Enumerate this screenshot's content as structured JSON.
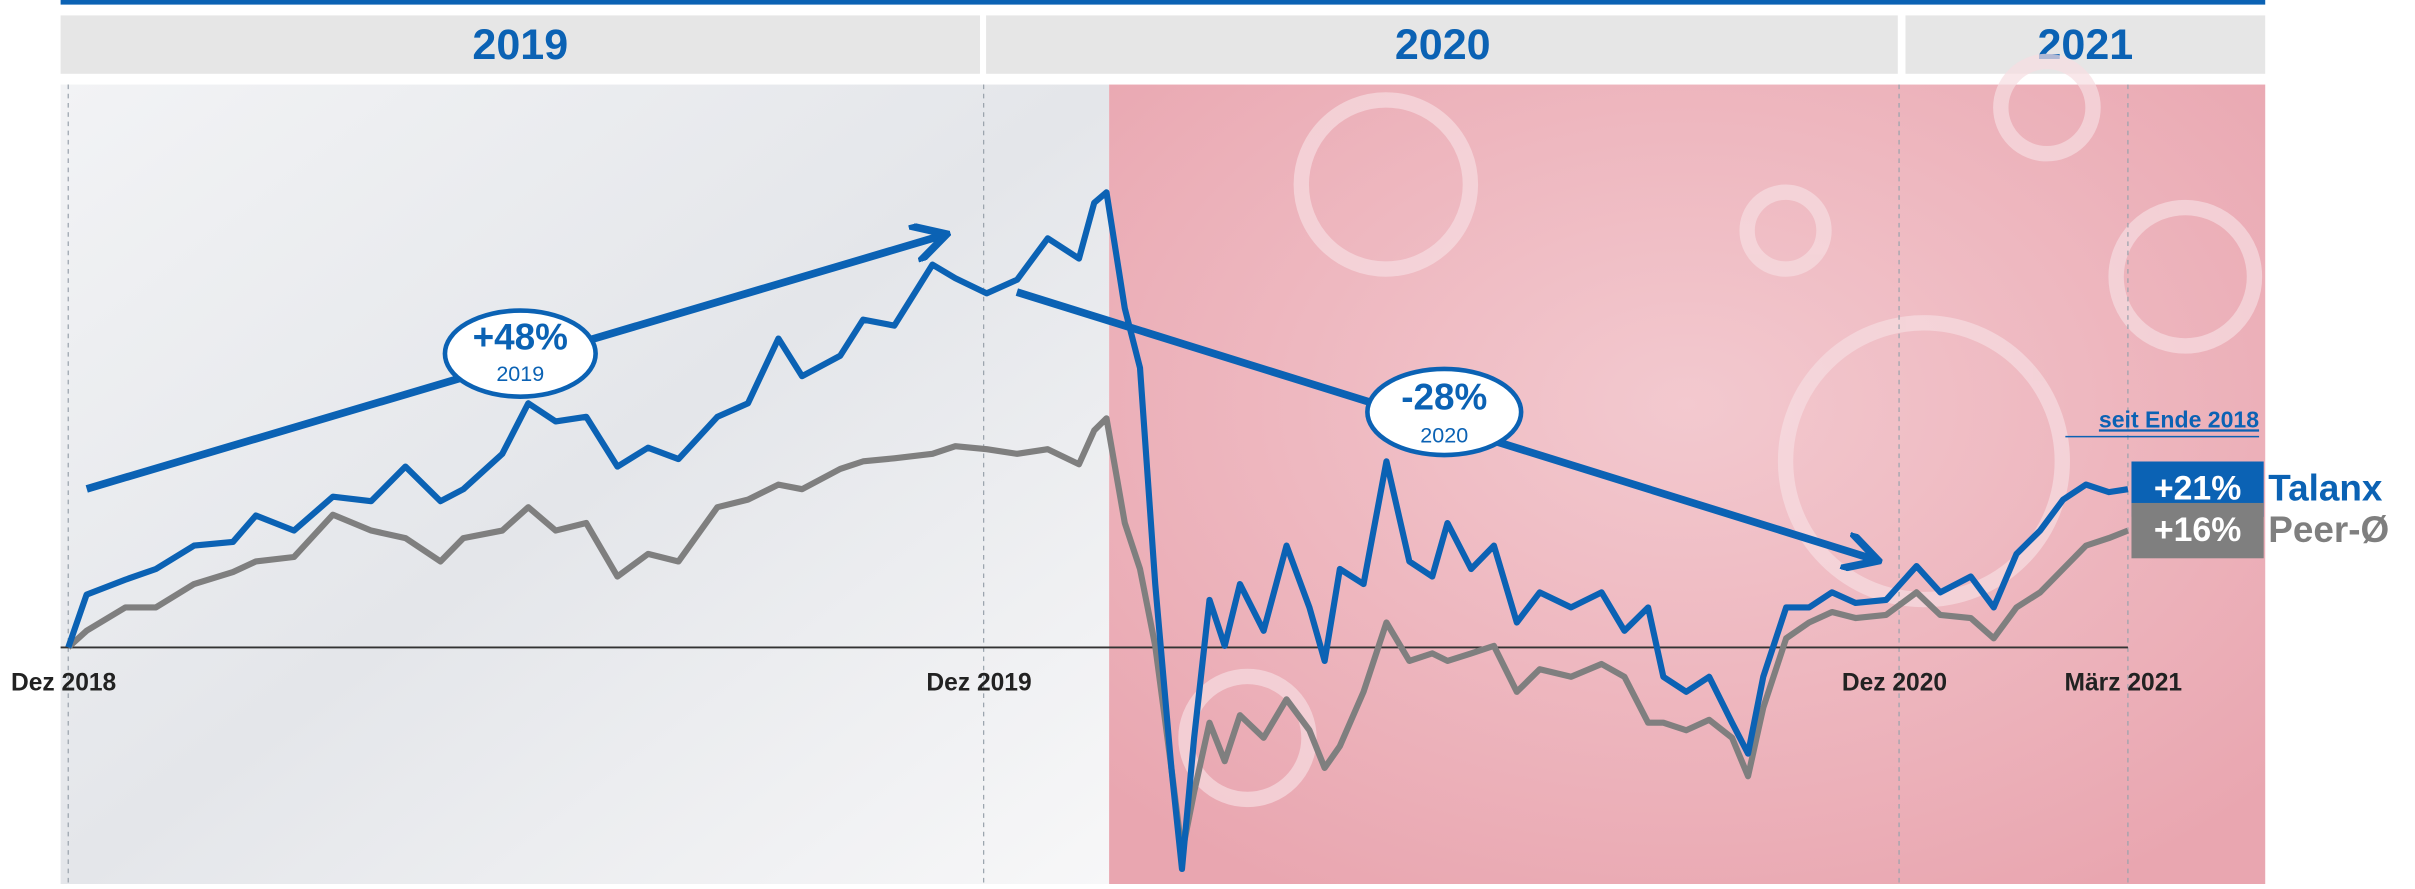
{
  "chart_data": {
    "type": "line",
    "header_years": [
      "2019",
      "2020",
      "2021"
    ],
    "x": [
      0,
      0.24,
      0.75,
      1.15,
      1.65,
      2.16,
      2.46,
      2.96,
      3.47,
      3.97,
      4.42,
      4.88,
      5.18,
      5.69,
      6.03,
      6.39,
      6.79,
      7.2,
      7.6,
      8.0,
      8.51,
      8.91,
      9.31,
      9.62,
      10.12,
      10.42,
      10.83,
      11.33,
      11.63,
      12.04,
      12.44,
      12.84,
      13.25,
      13.45,
      13.61,
      13.85,
      14.05,
      14.25,
      14.46,
      14.6,
      14.76,
      14.96,
      15.16,
      15.36,
      15.67,
      15.97,
      16.27,
      16.47,
      16.67,
      16.98,
      17.28,
      17.58,
      17.88,
      18.08,
      18.39,
      18.69,
      18.99,
      19.29,
      19.7,
      20.1,
      20.4,
      20.71,
      20.91,
      21.21,
      21.51,
      21.81,
      22.02,
      22.22,
      22.52,
      22.82,
      23.12,
      23.43,
      23.83,
      24.23,
      24.54,
      24.94,
      25.24,
      25.54,
      25.85,
      26.15,
      26.45,
      26.75,
      27
    ],
    "series": [
      {
        "name": "Talanx",
        "color": "#0b62b4",
        "end_label": "+21%",
        "values": [
          0,
          7,
          9,
          10.4,
          13.5,
          14,
          17.5,
          15.5,
          20,
          19.4,
          24,
          19.4,
          21,
          25.7,
          32.4,
          30,
          30.6,
          24,
          26.5,
          25,
          30.6,
          32.4,
          41,
          36,
          38.7,
          43.5,
          42.7,
          50.8,
          49,
          47,
          48.8,
          54.3,
          51.6,
          59,
          60.4,
          45,
          37.1,
          8.4,
          -16,
          -29.4,
          -12,
          6.3,
          0.2,
          8.4,
          2.2,
          13.5,
          5.3,
          -1.8,
          10.4,
          8.4,
          24.7,
          11.4,
          9.4,
          16.5,
          10.4,
          13.5,
          3.3,
          7.3,
          5.3,
          7.3,
          2.2,
          5.3,
          -3.9,
          -5.9,
          -3.9,
          -10,
          -14.1,
          -3.9,
          5.3,
          5.3,
          7.3,
          5.9,
          6.3,
          10.8,
          7.3,
          9.4,
          5.3,
          12.4,
          15.5,
          19.6,
          21.6,
          20.6,
          21
        ]
      },
      {
        "name": "Peer-Ø",
        "color": "#7f7f7f",
        "end_label": "+16%",
        "values": [
          0,
          2.2,
          5.3,
          5.3,
          8.4,
          10,
          11.4,
          12,
          17.6,
          15.5,
          14.5,
          11.4,
          14.5,
          15.5,
          18.6,
          15.5,
          16.5,
          9.4,
          12.4,
          11.4,
          18.6,
          19.6,
          21.6,
          21,
          23.7,
          24.7,
          25.1,
          25.7,
          26.7,
          26.3,
          25.7,
          26.3,
          24.3,
          28.8,
          30.4,
          16.5,
          10.4,
          0.2,
          -16,
          -27.3,
          -19.2,
          -10,
          -15.1,
          -9,
          -12,
          -6.9,
          -11,
          -16,
          -13.1,
          -5.9,
          3.3,
          -1.8,
          -0.8,
          -1.8,
          -0.8,
          0.2,
          -5.9,
          -2.9,
          -3.9,
          -2.2,
          -3.9,
          -10,
          -10,
          -11,
          -9.6,
          -12,
          -17.1,
          -8,
          1.2,
          3.3,
          4.7,
          3.9,
          4.3,
          7.3,
          4.3,
          3.9,
          1.2,
          5.3,
          7.3,
          10.4,
          13.5,
          14.5,
          15.5
        ]
      }
    ],
    "xlim": [
      -0.1,
      28.8
    ],
    "ylim": [
      -31.4,
      74.7
    ],
    "xticks": [
      {
        "value": 0,
        "label": "Dez 2018"
      },
      {
        "value": 12,
        "label": "Dez 2019"
      },
      {
        "value": 24,
        "label": "Dez 2020"
      },
      {
        "value": 27,
        "label": "März 2021"
      }
    ],
    "baseline": 0,
    "annotations": [
      {
        "text": "+48%",
        "sub": "2019"
      },
      {
        "text": "-28%",
        "sub": "2020"
      }
    ],
    "legend_title": "seit Ende 2018"
  }
}
